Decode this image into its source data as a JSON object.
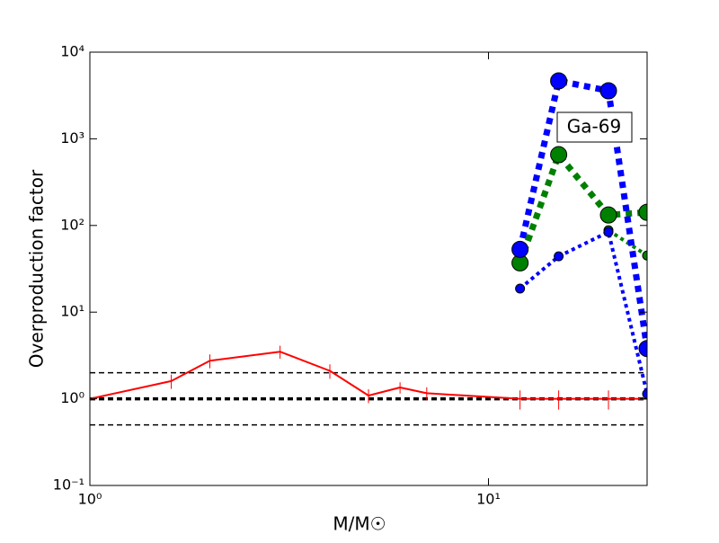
{
  "chart_data": {
    "type": "line",
    "xlabel": "M/M☉",
    "ylabel": "Overproduction factor",
    "annotation": "Ga-69",
    "xscale": "log",
    "yscale": "log",
    "xlim": [
      1,
      25
    ],
    "ylim": [
      0.1,
      10000
    ],
    "xticks": [
      {
        "value": 1,
        "label": "10⁰"
      },
      {
        "value": 10,
        "label": "10¹"
      }
    ],
    "yticks": [
      {
        "value": 0.1,
        "label": "10⁻¹"
      },
      {
        "value": 1,
        "label": "10⁰"
      },
      {
        "value": 10,
        "label": "10¹"
      },
      {
        "value": 100,
        "label": "10²"
      },
      {
        "value": 1000,
        "label": "10³"
      },
      {
        "value": 10000,
        "label": "10⁴"
      }
    ],
    "reference_lines": [
      {
        "value": 2,
        "width": 1.5
      },
      {
        "value": 1,
        "width": 3.5
      },
      {
        "value": 0.5,
        "width": 1.5
      }
    ],
    "series": [
      {
        "color": "#ff0000",
        "x": [
          1,
          1.6,
          2,
          3,
          4,
          5,
          6,
          7,
          12,
          15,
          20,
          25
        ],
        "values": [
          1,
          1.6,
          2.75,
          3.5,
          2.1,
          1.09,
          1.35,
          1.16,
          1,
          1,
          1,
          1
        ],
        "errors": [
          null,
          0.3,
          0.5,
          0.6,
          0.4,
          0.2,
          0.2,
          0.2,
          0.25,
          0.25,
          0.25,
          null
        ],
        "line_width": 2,
        "dash": "none",
        "marker_size": 0
      },
      {
        "color": "#008000",
        "x": [
          12,
          15,
          20,
          25
        ],
        "values": [
          null,
          null,
          88,
          45
        ],
        "line_width": 4,
        "dash": "4 4",
        "marker_size": 5
      },
      {
        "color": "#0000ff",
        "x": [
          12,
          15,
          20,
          25
        ],
        "values": [
          18.7,
          44,
          84,
          1.14
        ],
        "line_width": 4,
        "dash": "4 4",
        "marker_size": 5
      },
      {
        "color": "#008000",
        "x": [
          12,
          15,
          20,
          25
        ],
        "values": [
          37,
          656,
          132,
          142
        ],
        "line_width": 7,
        "dash": "7 6",
        "marker_size": 9
      },
      {
        "color": "#0000ff",
        "x": [
          12,
          15,
          20,
          25
        ],
        "values": [
          53,
          4660,
          3580,
          3.8
        ],
        "line_width": 7,
        "dash": "7 6",
        "marker_size": 9
      }
    ]
  }
}
